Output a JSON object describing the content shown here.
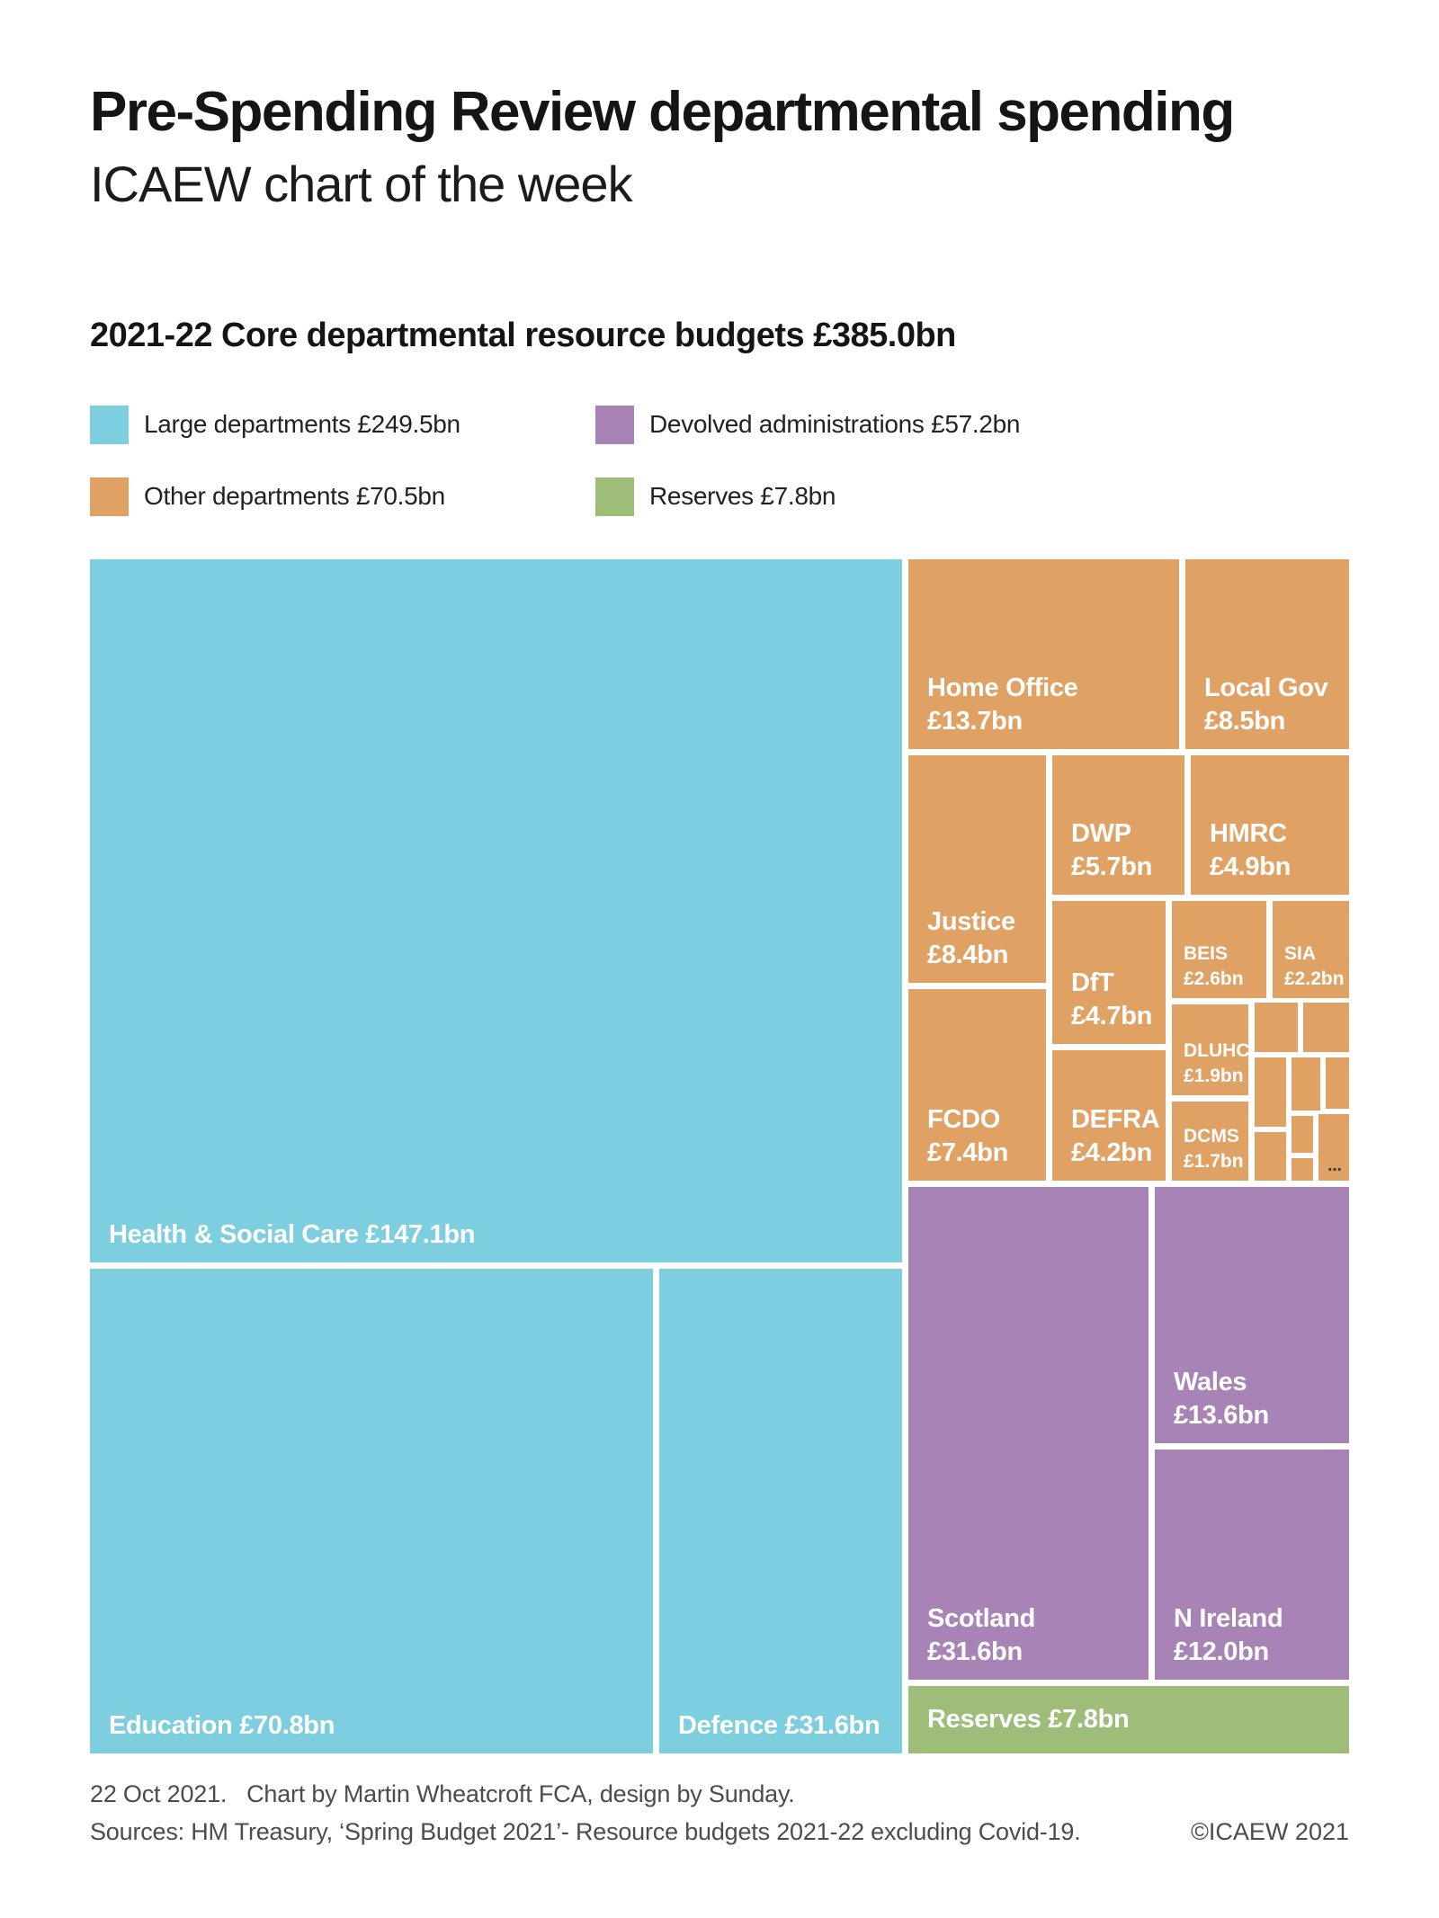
{
  "header": {
    "title": "Pre-Spending Review departmental spending",
    "subtitle": "ICAEW chart of the week"
  },
  "chart_heading": "2021-22 Core departmental resource budgets £385.0bn",
  "legend": [
    {
      "label": "Large departments £249.5bn",
      "color": "#7DCEDF"
    },
    {
      "label": "Devolved administrations £57.2bn",
      "color": "#A884B6"
    },
    {
      "label": "Other departments £70.5bn",
      "color": "#E0A264"
    },
    {
      "label": "Reserves £7.8bn",
      "color": "#9DBD79"
    }
  ],
  "chart_data": {
    "type": "treemap",
    "title": "2021-22 Core departmental resource budgets £385.0bn",
    "total_label": "£385.0bn",
    "total_bn": 385.0,
    "groups": [
      {
        "name": "Large departments",
        "total_bn": 249.5,
        "color": "#7DCEDF"
      },
      {
        "name": "Other departments",
        "total_bn": 70.5,
        "color": "#E0A264"
      },
      {
        "name": "Devolved administrations",
        "total_bn": 57.2,
        "color": "#A884B6"
      },
      {
        "name": "Reserves",
        "total_bn": 7.8,
        "color": "#9DBD79"
      }
    ],
    "nodes": [
      {
        "id": "health",
        "group": "Large departments",
        "lines": [
          "Health & Social Care £147.1bn"
        ],
        "value_bn": 147.1
      },
      {
        "id": "education",
        "group": "Large departments",
        "lines": [
          "Education £70.8bn"
        ],
        "value_bn": 70.8
      },
      {
        "id": "defence",
        "group": "Large departments",
        "lines": [
          "Defence £31.6bn"
        ],
        "value_bn": 31.6
      },
      {
        "id": "home_office",
        "group": "Other departments",
        "lines": [
          "Home Office",
          "£13.7bn"
        ],
        "value_bn": 13.7
      },
      {
        "id": "local_gov",
        "group": "Other departments",
        "lines": [
          "Local Gov",
          "£8.5bn"
        ],
        "value_bn": 8.5
      },
      {
        "id": "justice",
        "group": "Other departments",
        "lines": [
          "Justice",
          "£8.4bn"
        ],
        "value_bn": 8.4
      },
      {
        "id": "fcdo",
        "group": "Other departments",
        "lines": [
          "FCDO",
          "£7.4bn"
        ],
        "value_bn": 7.4
      },
      {
        "id": "dwp",
        "group": "Other departments",
        "lines": [
          "DWP",
          "£5.7bn"
        ],
        "value_bn": 5.7
      },
      {
        "id": "hmrc",
        "group": "Other departments",
        "lines": [
          "HMRC",
          "£4.9bn"
        ],
        "value_bn": 4.9
      },
      {
        "id": "dft",
        "group": "Other departments",
        "lines": [
          "DfT",
          "£4.7bn"
        ],
        "value_bn": 4.7
      },
      {
        "id": "defra",
        "group": "Other departments",
        "lines": [
          "DEFRA",
          "£4.2bn"
        ],
        "value_bn": 4.2
      },
      {
        "id": "beis",
        "group": "Other departments",
        "lines": [
          "BEIS",
          "£2.6bn"
        ],
        "value_bn": 2.6,
        "small": true
      },
      {
        "id": "sia",
        "group": "Other departments",
        "lines": [
          "SIA",
          "£2.2bn"
        ],
        "value_bn": 2.2,
        "small": true
      },
      {
        "id": "dluhc",
        "group": "Other departments",
        "lines": [
          "DLUHC",
          "£1.9bn"
        ],
        "value_bn": 1.9,
        "small": true
      },
      {
        "id": "dcms",
        "group": "Other departments",
        "lines": [
          "DCMS",
          "£1.7bn"
        ],
        "value_bn": 1.7,
        "small": true
      },
      {
        "id": "other_small",
        "group": "Other departments",
        "lines": [
          "..."
        ],
        "dark": true
      },
      {
        "id": "scotland",
        "group": "Devolved administrations",
        "lines": [
          "Scotland",
          "£31.6bn"
        ],
        "value_bn": 31.6
      },
      {
        "id": "wales",
        "group": "Devolved administrations",
        "lines": [
          "Wales",
          "£13.6bn"
        ],
        "value_bn": 13.6
      },
      {
        "id": "nireland",
        "group": "Devolved administrations",
        "lines": [
          "N Ireland",
          "£12.0bn"
        ],
        "value_bn": 12.0
      },
      {
        "id": "reserves",
        "group": "Reserves",
        "lines": [
          "Reserves £7.8bn"
        ],
        "value_bn": 7.8,
        "vcenter": true
      }
    ]
  },
  "footer": {
    "line1": "22 Oct 2021.   Chart by Martin Wheatcroft FCA, design by Sunday.",
    "line2": "Sources: HM Treasury, ‘Spring Budget 2021’- Resource budgets 2021-22 excluding Covid-19.",
    "copyright": "©ICAEW 2021"
  }
}
